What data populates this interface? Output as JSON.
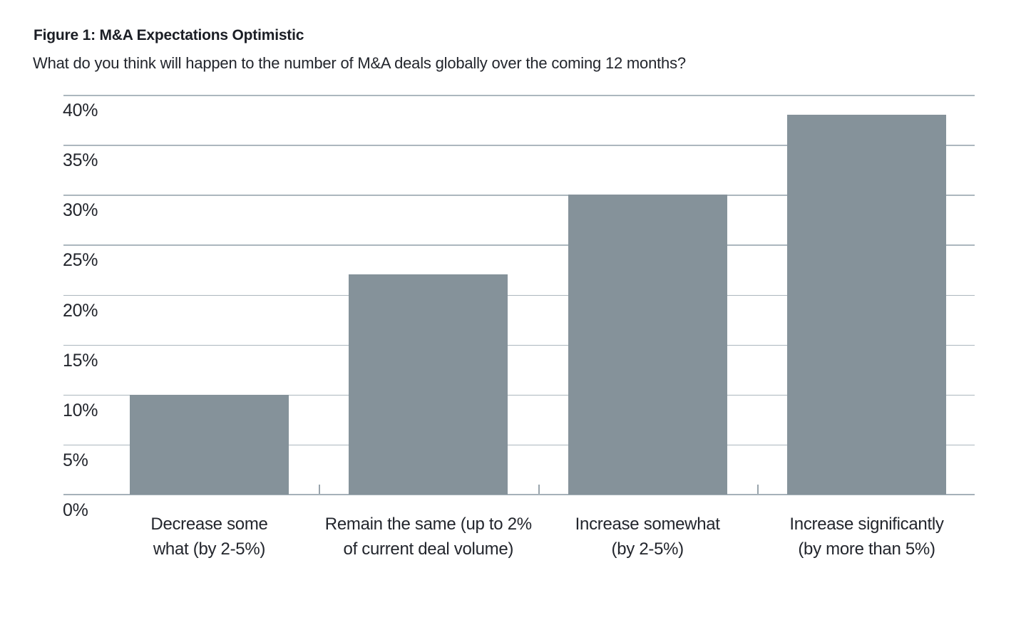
{
  "figure": {
    "title": "Figure 1: M&A Expectations Optimistic",
    "subtitle": "What do you think will happen to the number of M&A deals globally over the coming 12 months?"
  },
  "chart_data": {
    "type": "bar",
    "title": "Figure 1: M&A Expectations Optimistic",
    "question": "What do you think will happen to the number of M&A deals globally over the coming 12 months?",
    "categories": [
      "Decrease some\nwhat (by 2-5%)",
      "Remain the same (up to 2%\nof current deal volume)",
      "Increase somewhat\n(by 2-5%)",
      "Increase significantly\n(by more than 5%)"
    ],
    "values": [
      10,
      22,
      30,
      38
    ],
    "unit": "%",
    "xlabel": "",
    "ylabel": "",
    "ylim": [
      0,
      40
    ],
    "ytick_values": [
      40,
      35,
      30,
      25,
      20,
      15,
      10,
      5,
      0
    ],
    "ytick_labels": [
      "40%",
      "35%",
      "30%",
      "25%",
      "20%",
      "15%",
      "10%",
      "5%",
      "0%"
    ],
    "grid": "horizontal",
    "legend": "none",
    "colors": {
      "bar": "#85929A",
      "gridline": "#ACB7BE",
      "axis": "#A6B1B9",
      "tick": "#99A4AC",
      "text": "#23262d"
    }
  }
}
